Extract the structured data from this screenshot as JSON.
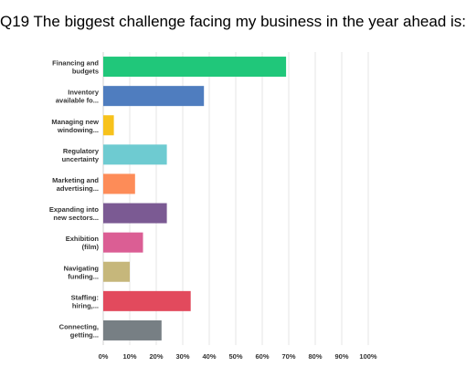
{
  "title": "Q19 The biggest challenge facing my business in the year ahead is:",
  "chart_data": {
    "type": "bar",
    "orientation": "horizontal",
    "categories": [
      [
        "Financing and",
        "budgets"
      ],
      [
        "Inventory",
        "available fo..."
      ],
      [
        "Managing new",
        "windowing..."
      ],
      [
        "Regulatory",
        "uncertainty"
      ],
      [
        "Marketing and",
        "advertising..."
      ],
      [
        "Expanding into",
        "new sectors..."
      ],
      [
        "Exhibition",
        "(film)"
      ],
      [
        "Navigating",
        "funding..."
      ],
      [
        "Staffing:",
        "hiring,..."
      ],
      [
        "Connecting,",
        "getting..."
      ]
    ],
    "values": [
      69,
      38,
      4,
      24,
      12,
      24,
      15,
      10,
      33,
      22
    ],
    "colors": [
      "#20c77a",
      "#4f7dbf",
      "#f7c21c",
      "#6ecbd1",
      "#fd8c58",
      "#7b5a93",
      "#db5e94",
      "#c6b77b",
      "#e24a5d",
      "#777f84"
    ],
    "xlim": [
      0,
      100
    ],
    "xticks": [
      "0%",
      "10%",
      "20%",
      "30%",
      "40%",
      "50%",
      "60%",
      "70%",
      "80%",
      "90%",
      "100%"
    ],
    "grid": true
  }
}
